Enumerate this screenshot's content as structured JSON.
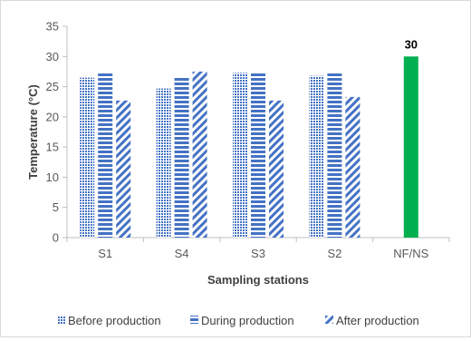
{
  "chart_data": {
    "type": "bar",
    "title": "",
    "xlabel": "Sampling stations",
    "ylabel": "Temperature (°C)",
    "ylim": [
      0,
      35
    ],
    "yticks": [
      0,
      5,
      10,
      15,
      20,
      25,
      30,
      35
    ],
    "categories": [
      "S1",
      "S4",
      "S3",
      "S2",
      "NF/NS"
    ],
    "series": [
      {
        "name": "Before production",
        "pattern": "dots",
        "color": "#4472c4",
        "values": [
          26.5,
          24.7,
          27.3,
          26.8,
          null
        ]
      },
      {
        "name": "During production",
        "pattern": "hstripes",
        "color": "#4472c4",
        "values": [
          27.3,
          26.5,
          27.3,
          27.3,
          null
        ]
      },
      {
        "name": "After production",
        "pattern": "diagonal",
        "color": "#4472c4",
        "values": [
          22.7,
          27.5,
          22.7,
          23.3,
          null
        ]
      }
    ],
    "extra_bars": [
      {
        "category": "NF/NS",
        "value": 30,
        "color": "#00b050",
        "label": "30"
      }
    ],
    "grid": false,
    "legend_position": "bottom"
  }
}
